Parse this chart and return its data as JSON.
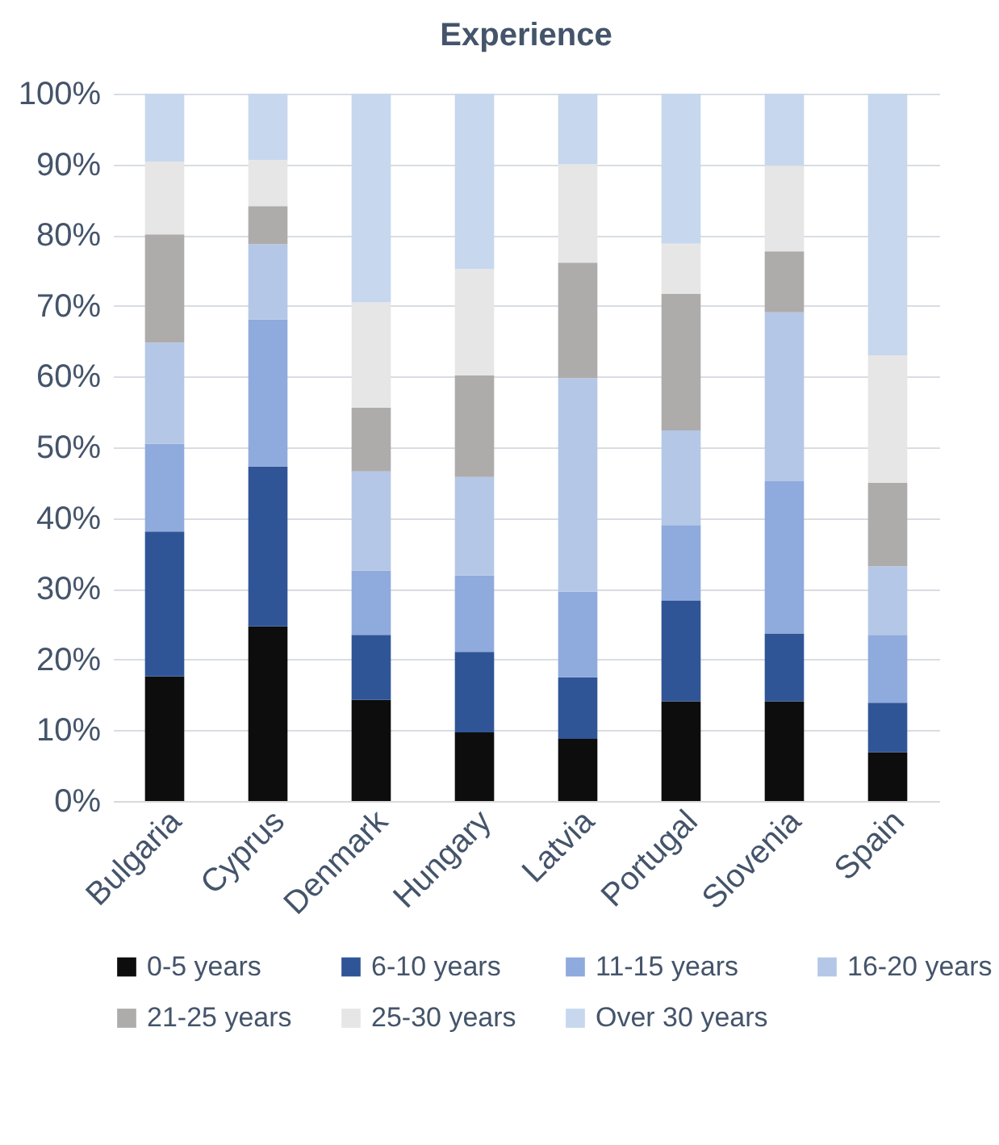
{
  "chart_data": {
    "type": "bar",
    "stacked": true,
    "title": "Experience",
    "categories": [
      "Bulgaria",
      "Cyprus",
      "Denmark",
      "Hungary",
      "Latvia",
      "Portugal",
      "Slovenia",
      "Spain"
    ],
    "series": [
      {
        "name": "0-5 years",
        "color": "#0d0d0d",
        "values": [
          17.6,
          24.7,
          14.3,
          9.7,
          8.8,
          14.1,
          14.1,
          6.9
        ]
      },
      {
        "name": "6-10 years",
        "color": "#2f5597",
        "values": [
          20.5,
          22.6,
          9.2,
          11.4,
          8.7,
          14.2,
          9.6,
          7.0
        ]
      },
      {
        "name": "11-15 years",
        "color": "#8faadc",
        "values": [
          12.4,
          20.8,
          9.1,
          10.8,
          12.1,
          10.7,
          21.5,
          9.6
        ]
      },
      {
        "name": "16-20 years",
        "color": "#b4c7e7",
        "values": [
          14.3,
          10.6,
          14.0,
          13.9,
          30.2,
          13.4,
          23.9,
          9.7
        ]
      },
      {
        "name": "21-25 years",
        "color": "#aeabab",
        "values": [
          15.3,
          5.4,
          9.0,
          14.4,
          16.3,
          19.3,
          8.6,
          11.8
        ]
      },
      {
        "name": "25-30 years",
        "color": "#e7e6e6",
        "values": [
          10.3,
          6.5,
          14.9,
          15.0,
          13.9,
          7.1,
          12.1,
          18.0
        ]
      },
      {
        "name": "Over 30 years",
        "color": "#c7d7ed",
        "values": [
          9.6,
          9.4,
          29.5,
          24.8,
          10.0,
          21.2,
          10.2,
          37.0
        ]
      }
    ],
    "ylim": [
      0,
      100
    ],
    "yticks": [
      {
        "value": 0,
        "label": "0%"
      },
      {
        "value": 10,
        "label": "10%"
      },
      {
        "value": 20,
        "label": "20%"
      },
      {
        "value": 30,
        "label": "30%"
      },
      {
        "value": 40,
        "label": "40%"
      },
      {
        "value": 50,
        "label": "50%"
      },
      {
        "value": 60,
        "label": "60%"
      },
      {
        "value": 70,
        "label": "70%"
      },
      {
        "value": 80,
        "label": "80%"
      },
      {
        "value": 90,
        "label": "90%"
      },
      {
        "value": 100,
        "label": "100%"
      }
    ],
    "grid": "y",
    "legend": "bottom"
  }
}
